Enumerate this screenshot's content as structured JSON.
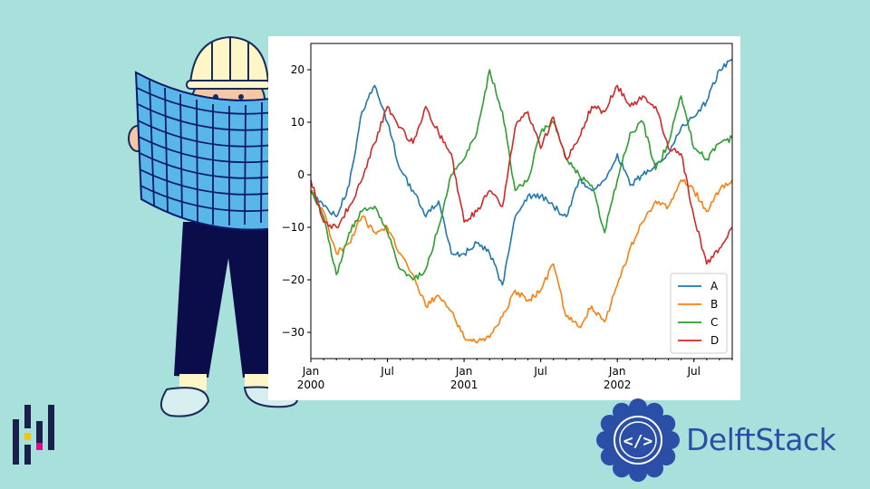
{
  "brand": {
    "name": "DelftStack",
    "color": "#2b4fa6"
  },
  "icons": {
    "character": "engineer-reading-map-icon",
    "pandas_logo": "pandas-logo-icon",
    "brand_logo": "delftstack-code-badge-icon",
    "badge_glyph": "</>"
  },
  "colors": {
    "background": "#a8e0db",
    "A": "#1f77b4",
    "B": "#ff7f0e",
    "C": "#2ca02c",
    "D": "#d62728"
  },
  "chart_data": {
    "type": "line",
    "title": "",
    "xlabel": "",
    "ylabel": "",
    "xlim": [
      "2000-01",
      "2002-10"
    ],
    "ylim": [
      -35,
      25
    ],
    "yticks": [
      20,
      10,
      0,
      -10,
      -20,
      -30
    ],
    "ytick_labels": [
      "20",
      "10",
      "0",
      "−10",
      "−20",
      "−30"
    ],
    "xticks": [
      {
        "date": "2000-01",
        "label": "Jan",
        "sublabel": "2000"
      },
      {
        "date": "2000-07",
        "label": "Jul",
        "sublabel": ""
      },
      {
        "date": "2001-01",
        "label": "Jan",
        "sublabel": "2001"
      },
      {
        "date": "2001-07",
        "label": "Jul",
        "sublabel": ""
      },
      {
        "date": "2002-01",
        "label": "Jan",
        "sublabel": "2002"
      },
      {
        "date": "2002-07",
        "label": "Jul",
        "sublabel": ""
      }
    ],
    "legend_position": "lower-right",
    "grid": false,
    "x": [
      "2000-01",
      "2000-02",
      "2000-03",
      "2000-04",
      "2000-05",
      "2000-06",
      "2000-07",
      "2000-08",
      "2000-09",
      "2000-10",
      "2000-11",
      "2000-12",
      "2001-01",
      "2001-02",
      "2001-03",
      "2001-04",
      "2001-05",
      "2001-06",
      "2001-07",
      "2001-08",
      "2001-09",
      "2001-10",
      "2001-11",
      "2001-12",
      "2002-01",
      "2002-02",
      "2002-03",
      "2002-04",
      "2002-05",
      "2002-06",
      "2002-07",
      "2002-08",
      "2002-09",
      "2002-10"
    ],
    "series": [
      {
        "name": "A",
        "color": "#1f77b4",
        "values": [
          -3,
          -6,
          -8,
          -2,
          12,
          17,
          10,
          1,
          -3,
          -8,
          -5,
          -15,
          -15,
          -13,
          -15,
          -21,
          -8,
          -4,
          -4,
          -6,
          -8,
          -1,
          -3,
          -1,
          4,
          -2,
          0,
          2,
          4,
          9,
          11,
          14,
          20,
          22
        ]
      },
      {
        "name": "B",
        "color": "#ff7f0e",
        "values": [
          -3,
          -7,
          -15,
          -13,
          -8,
          -11,
          -10,
          -15,
          -19,
          -25,
          -23,
          -26,
          -31,
          -32,
          -31,
          -27,
          -22,
          -24,
          -22,
          -17,
          -27,
          -29,
          -25,
          -28,
          -21,
          -14,
          -9,
          -5,
          -6,
          -1,
          -3,
          -7,
          -3,
          -1
        ]
      },
      {
        "name": "C",
        "color": "#2ca02c",
        "values": [
          -3,
          -8,
          -19,
          -11,
          -7,
          -6,
          -11,
          -18,
          -20,
          -18,
          -10,
          0,
          3,
          8,
          20,
          12,
          -3,
          -1,
          8,
          10,
          3,
          0,
          -2,
          -11,
          -1,
          8,
          10,
          1,
          6,
          15,
          5,
          3,
          6,
          7
        ]
      },
      {
        "name": "D",
        "color": "#d62728",
        "values": [
          -1,
          -9,
          -10,
          -6,
          -1,
          6,
          13,
          9,
          6,
          13,
          8,
          4,
          -9,
          -7,
          -3,
          -6,
          9,
          12,
          5,
          11,
          3,
          7,
          13,
          12,
          17,
          13,
          15,
          13,
          5,
          4,
          -8,
          -17,
          -14,
          -10
        ]
      }
    ]
  }
}
